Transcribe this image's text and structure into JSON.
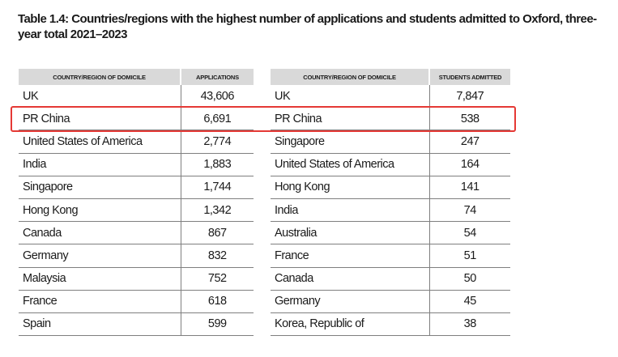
{
  "title": "Table 1.4: Countries/regions with the highest number of applications and students admitted to Oxford, three-year total 2021–2023",
  "left_table": {
    "headers": [
      "COUNTRY/REGION OF DOMICILE",
      "APPLICATIONS"
    ],
    "rows": [
      [
        "UK",
        "43,606"
      ],
      [
        "PR China",
        "6,691"
      ],
      [
        "United States of America",
        "2,774"
      ],
      [
        "India",
        "1,883"
      ],
      [
        "Singapore",
        "1,744"
      ],
      [
        "Hong Kong",
        "1,342"
      ],
      [
        "Canada",
        "867"
      ],
      [
        "Germany",
        "832"
      ],
      [
        "Malaysia",
        "752"
      ],
      [
        "France",
        "618"
      ],
      [
        "Spain",
        "599"
      ]
    ]
  },
  "right_table": {
    "headers": [
      "COUNTRY/REGION OF DOMICILE",
      "STUDENTS ADMITTED"
    ],
    "rows": [
      [
        "UK",
        "7,847"
      ],
      [
        "PR China",
        "538"
      ],
      [
        "Singapore",
        "247"
      ],
      [
        "United States of America",
        "164"
      ],
      [
        "Hong Kong",
        "141"
      ],
      [
        "India",
        "74"
      ],
      [
        "Australia",
        "54"
      ],
      [
        "France",
        "51"
      ],
      [
        "Canada",
        "50"
      ],
      [
        "Germany",
        "45"
      ],
      [
        "Korea, Republic of",
        "38"
      ]
    ]
  },
  "highlight": {
    "row_index": 1,
    "color": "#e53935"
  },
  "colors": {
    "header_bg": "#d9d9d9",
    "rule": "#7f7f7f",
    "text": "#1a1a1a"
  }
}
